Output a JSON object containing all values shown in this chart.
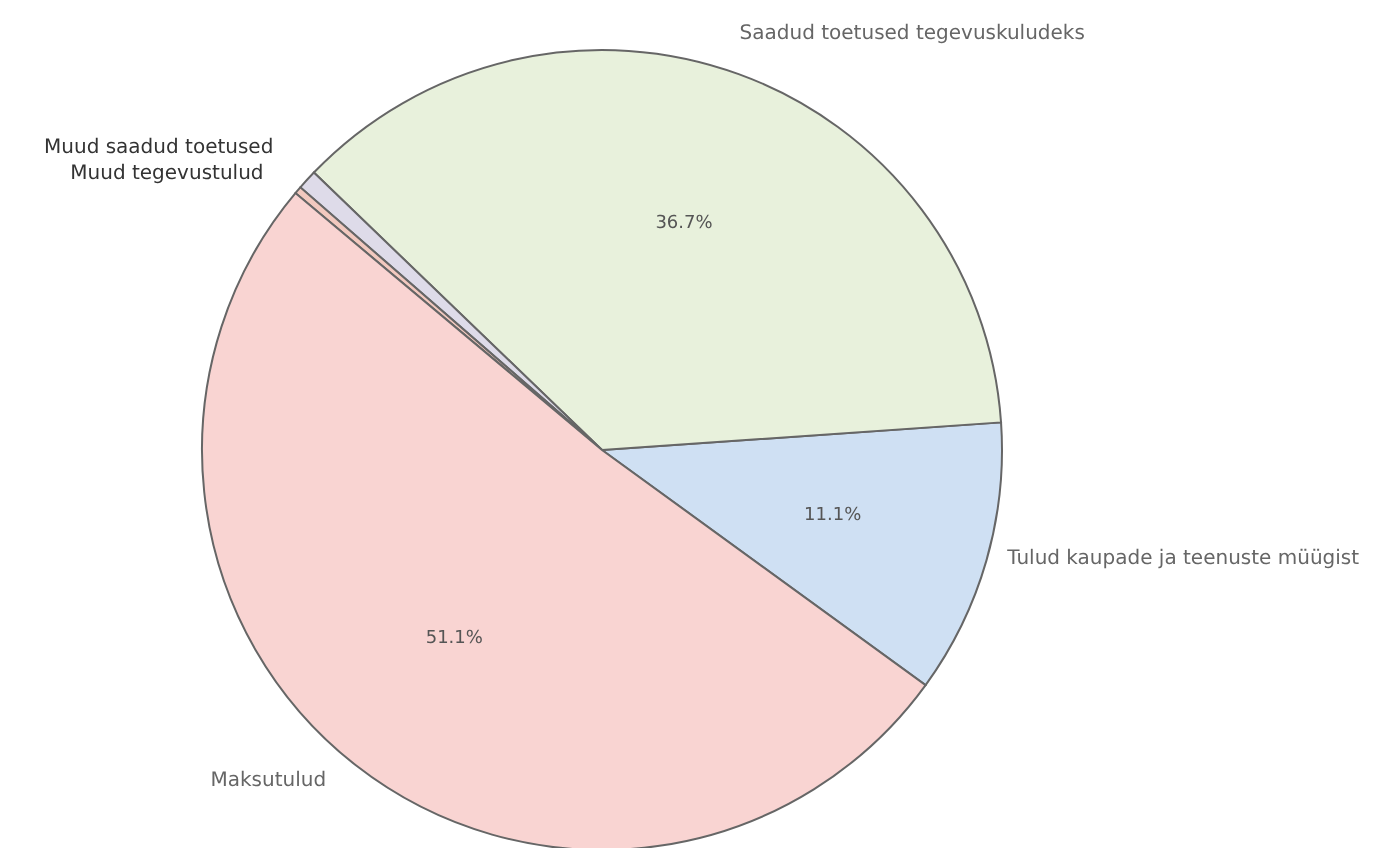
{
  "chart_data": {
    "type": "pie",
    "categories": [
      "Tulud kaupade ja teenuste müügist",
      "Saadud toetused tegevuskuludeks",
      "Muud saadud toetused",
      "Muud tegevustulud",
      "Maksutulud"
    ],
    "values": [
      11.1,
      36.7,
      0.8,
      0.3,
      51.1
    ],
    "value_labels": [
      "11.1%",
      "36.7%",
      null,
      null,
      "51.1%"
    ],
    "colors": [
      "#cfe0f3",
      "#e8f1dc",
      "#dedbe9",
      "#f2c9bf",
      "#f9d4d2"
    ]
  }
}
